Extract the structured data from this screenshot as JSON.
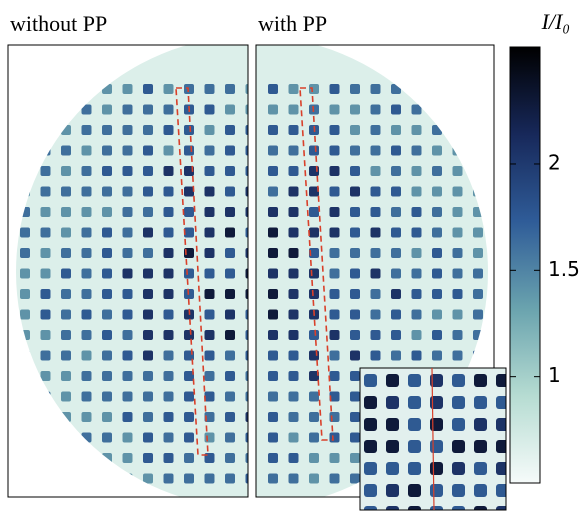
{
  "chart_data": {
    "type": "heatmap",
    "panels": [
      {
        "title": "without PP"
      },
      {
        "title": "with PP"
      }
    ],
    "colorbar": {
      "label": "I/I₀",
      "ylim": [
        0.5,
        2.55
      ],
      "yticks": [
        1,
        1.5,
        2
      ],
      "colors": [
        "#f6fbfa",
        "#b6dcd2",
        "#6aa3ae",
        "#2f5c98",
        "#17285a",
        "#000000"
      ]
    }
  }
}
